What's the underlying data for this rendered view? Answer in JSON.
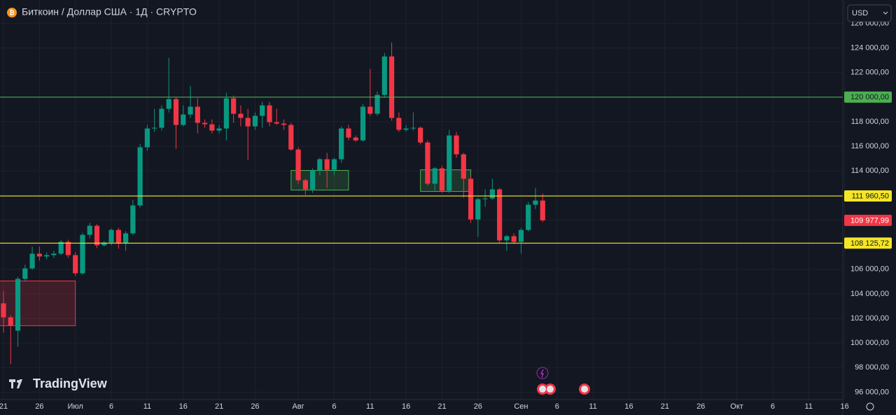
{
  "chart_data": {
    "type": "candlestick",
    "title": "Биткоин / Доллар США · 1Д · CRYPTO",
    "currency": "USD",
    "brand": "TradingView",
    "up_color": "#089981",
    "down_color": "#f23645",
    "x": [
      "06-21",
      "06-22",
      "06-23",
      "06-24",
      "06-25",
      "06-26",
      "06-27",
      "06-28",
      "06-29",
      "06-30",
      "07-01",
      "07-02",
      "07-03",
      "07-04",
      "07-05",
      "07-06",
      "07-07",
      "07-08",
      "07-09",
      "07-10",
      "07-11",
      "07-12",
      "07-13",
      "07-14",
      "07-15",
      "07-16",
      "07-17",
      "07-18",
      "07-19",
      "07-20",
      "07-21",
      "07-22",
      "07-23",
      "07-24",
      "07-25",
      "07-26",
      "07-27",
      "07-28",
      "07-29",
      "07-30",
      "07-31",
      "08-01",
      "08-02",
      "08-03",
      "08-04",
      "08-05",
      "08-06",
      "08-07",
      "08-08",
      "08-09",
      "08-10",
      "08-11",
      "08-12",
      "08-13",
      "08-14",
      "08-15",
      "08-16",
      "08-17",
      "08-18",
      "08-19",
      "08-20",
      "08-21",
      "08-22",
      "08-23",
      "08-24",
      "08-25",
      "08-26",
      "08-27",
      "08-28",
      "08-29",
      "08-30",
      "08-31",
      "09-01",
      "09-02",
      "09-03",
      "09-04"
    ],
    "open": [
      103230,
      102090,
      101010,
      105220,
      106070,
      107270,
      107040,
      107150,
      107270,
      108230,
      107150,
      105670,
      108800,
      109540,
      107950,
      108180,
      109200,
      108120,
      108920,
      111190,
      115920,
      117450,
      117510,
      119050,
      119840,
      117740,
      118590,
      119220,
      117910,
      117790,
      117280,
      117450,
      119900,
      118650,
      118310,
      117620,
      118480,
      119330,
      117960,
      117850,
      117740,
      115740,
      113240,
      112500,
      114040,
      114950,
      114090,
      114950,
      117450,
      116710,
      116480,
      119220,
      118650,
      120180,
      123310,
      118310,
      117340,
      117450,
      117510,
      116310,
      112960,
      114210,
      112390,
      116880,
      115350,
      113360,
      110050,
      111700,
      111760,
      112500,
      108350,
      108690,
      108230,
      109200,
      111250,
      111590
    ],
    "high": [
      104250,
      102260,
      105390,
      106360,
      107840,
      107840,
      107380,
      107490,
      108400,
      108400,
      107380,
      108970,
      109770,
      109660,
      108290,
      109320,
      109370,
      109090,
      111650,
      116200,
      117740,
      119050,
      119330,
      123200,
      120010,
      119330,
      120920,
      119900,
      118190,
      118190,
      117740,
      120350,
      120130,
      119330,
      119050,
      118760,
      119610,
      119610,
      119050,
      118190,
      117910,
      115920,
      113360,
      114210,
      115060,
      115460,
      115060,
      117620,
      117740,
      116880,
      119440,
      122290,
      120470,
      123600,
      124450,
      118760,
      117740,
      118760,
      117620,
      116480,
      114320,
      114440,
      117340,
      117170,
      115460,
      113640,
      111820,
      112500,
      113360,
      112620,
      108800,
      108920,
      109370,
      111480,
      112620,
      112160
    ],
    "low": [
      100840,
      98280,
      99700,
      104990,
      105960,
      106700,
      106810,
      106930,
      107150,
      106930,
      105450,
      105560,
      108520,
      107720,
      107840,
      107950,
      107670,
      107490,
      108800,
      111020,
      115630,
      117170,
      117280,
      118760,
      115800,
      117620,
      118310,
      117050,
      117510,
      117050,
      117050,
      116480,
      117910,
      117620,
      114890,
      117340,
      117510,
      117620,
      117740,
      117340,
      115630,
      112960,
      112050,
      112220,
      113640,
      112620,
      113640,
      114660,
      116480,
      116370,
      116370,
      118480,
      118480,
      120010,
      118080,
      117170,
      117170,
      117280,
      116140,
      112790,
      112390,
      112220,
      112220,
      115060,
      111820,
      109770,
      108630,
      111080,
      111650,
      108180,
      107490,
      108060,
      107270,
      109090,
      110910,
      109830
    ],
    "close": [
      102090,
      101410,
      105220,
      106070,
      107270,
      107040,
      107150,
      107270,
      108230,
      107150,
      105670,
      108800,
      109540,
      107950,
      108180,
      109200,
      108120,
      108920,
      111190,
      115920,
      117450,
      117510,
      119050,
      119840,
      117740,
      118590,
      119220,
      117910,
      117790,
      117280,
      117450,
      119900,
      118650,
      118310,
      117620,
      118480,
      119330,
      117960,
      117850,
      117740,
      115740,
      113240,
      112500,
      114040,
      114950,
      114090,
      114950,
      117450,
      116710,
      116480,
      119220,
      118650,
      120180,
      123310,
      118310,
      117340,
      117450,
      117510,
      116310,
      112960,
      114210,
      112390,
      116880,
      115350,
      113360,
      110050,
      111700,
      111760,
      112500,
      108350,
      108690,
      108230,
      109200,
      111250,
      111590,
      109977.99
    ],
    "ylim": [
      95400,
      127900
    ],
    "yticks": [
      {
        "value": 96000,
        "label": "96 000,00"
      },
      {
        "value": 98000,
        "label": "98 000,00"
      },
      {
        "value": 100000,
        "label": "100 000,00"
      },
      {
        "value": 102000,
        "label": "102 000,00"
      },
      {
        "value": 104000,
        "label": "104 000,00"
      },
      {
        "value": 106000,
        "label": "106 000,00"
      },
      {
        "value": 108000,
        "label": "108 000,00"
      },
      {
        "value": 110000,
        "label": "110 000,00"
      },
      {
        "value": 112000,
        "label": "112 000,00"
      },
      {
        "value": 114000,
        "label": "114 000,00"
      },
      {
        "value": 116000,
        "label": "116 000,00"
      },
      {
        "value": 118000,
        "label": "118 000,00"
      },
      {
        "value": 120000,
        "label": "120 000,00"
      },
      {
        "value": 122000,
        "label": "122 000,00"
      },
      {
        "value": 124000,
        "label": "124 000,00"
      },
      {
        "value": 126000,
        "label": "126 000,00"
      }
    ],
    "xticks": [
      {
        "value": "06-21",
        "label": "21"
      },
      {
        "value": "06-26",
        "label": "26"
      },
      {
        "value": "07-01",
        "label": "Июл"
      },
      {
        "value": "07-06",
        "label": "6"
      },
      {
        "value": "07-11",
        "label": "11"
      },
      {
        "value": "07-16",
        "label": "16"
      },
      {
        "value": "07-21",
        "label": "21"
      },
      {
        "value": "07-26",
        "label": "26"
      },
      {
        "value": "08-01",
        "label": "Авг"
      },
      {
        "value": "08-06",
        "label": "6"
      },
      {
        "value": "08-11",
        "label": "11"
      },
      {
        "value": "08-16",
        "label": "16"
      },
      {
        "value": "08-21",
        "label": "21"
      },
      {
        "value": "08-26",
        "label": "26"
      },
      {
        "value": "09-01",
        "label": "Сен"
      },
      {
        "value": "09-06",
        "label": "6"
      },
      {
        "value": "09-11",
        "label": "11"
      },
      {
        "value": "09-16",
        "label": "16"
      },
      {
        "value": "09-21",
        "label": "21"
      },
      {
        "value": "09-26",
        "label": "26"
      },
      {
        "value": "10-01",
        "label": "Окт"
      },
      {
        "value": "10-06",
        "label": "6"
      },
      {
        "value": "10-11",
        "label": "11"
      },
      {
        "value": "10-16",
        "label": "16"
      }
    ],
    "grid": true,
    "levels": [
      {
        "value": 120000,
        "label": "120 000,00",
        "color": "#4caf50"
      },
      {
        "value": 111960.5,
        "label": "111 960,50",
        "color": "#f5e625"
      },
      {
        "value": 108125.72,
        "label": "108 125,72",
        "color": "#f5e625"
      }
    ],
    "current_price": {
      "value": 109977.99,
      "label": "109 977,99",
      "color": "#f23645"
    },
    "zones": [
      {
        "start": "06-20",
        "end": "07-01",
        "top": 105050,
        "bottom": 101410,
        "color": "#f23645"
      },
      {
        "start": "07-31",
        "end": "08-08",
        "top": 114040,
        "bottom": 112440,
        "color": "#4caf50"
      },
      {
        "start": "08-18",
        "end": "08-25",
        "top": 114090,
        "bottom": 112330,
        "color": "#4caf50"
      }
    ]
  }
}
